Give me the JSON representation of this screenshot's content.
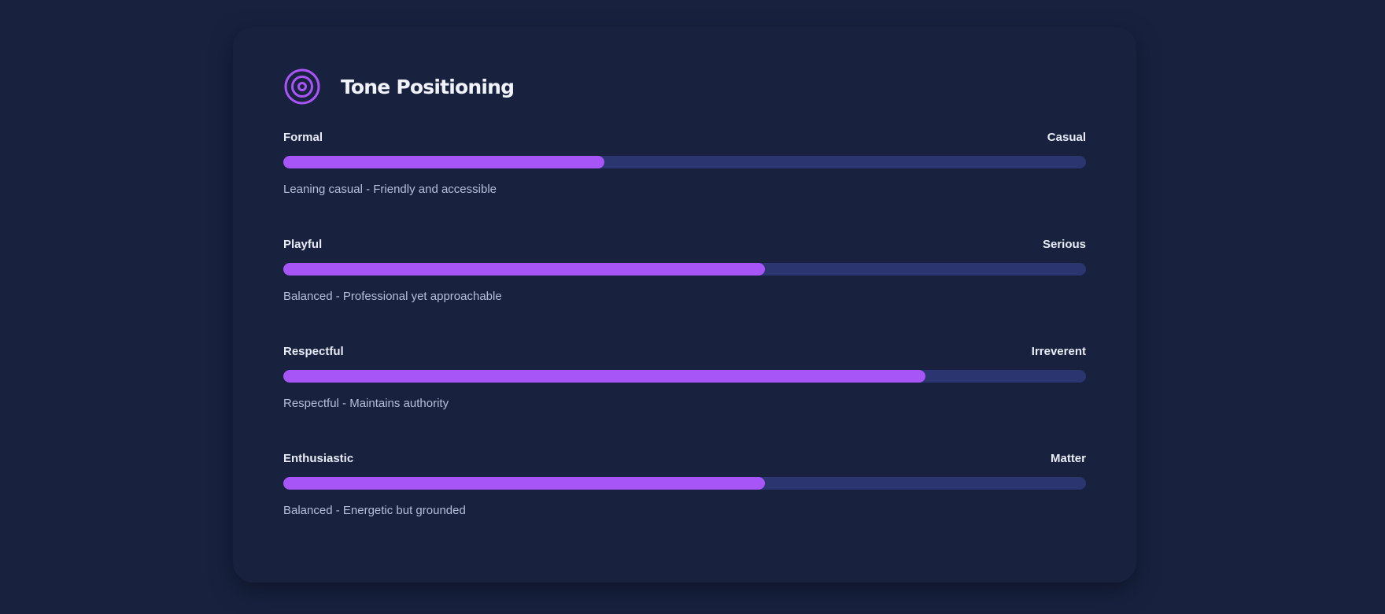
{
  "card": {
    "title": "Tone Positioning",
    "icon": "target-icon",
    "accent_color": "#a855f7",
    "track_color": "#2b3670"
  },
  "scales": [
    {
      "left_label": "Formal",
      "right_label": "Casual",
      "value_percent": 40,
      "description": "Leaning casual - Friendly and accessible"
    },
    {
      "left_label": "Playful",
      "right_label": "Serious",
      "value_percent": 60,
      "description": "Balanced - Professional yet approachable"
    },
    {
      "left_label": "Respectful",
      "right_label": "Irreverent",
      "value_percent": 80,
      "description": "Respectful - Maintains authority"
    },
    {
      "left_label": "Enthusiastic",
      "right_label": "Matter",
      "value_percent": 60,
      "description": "Balanced - Energetic but grounded"
    }
  ]
}
